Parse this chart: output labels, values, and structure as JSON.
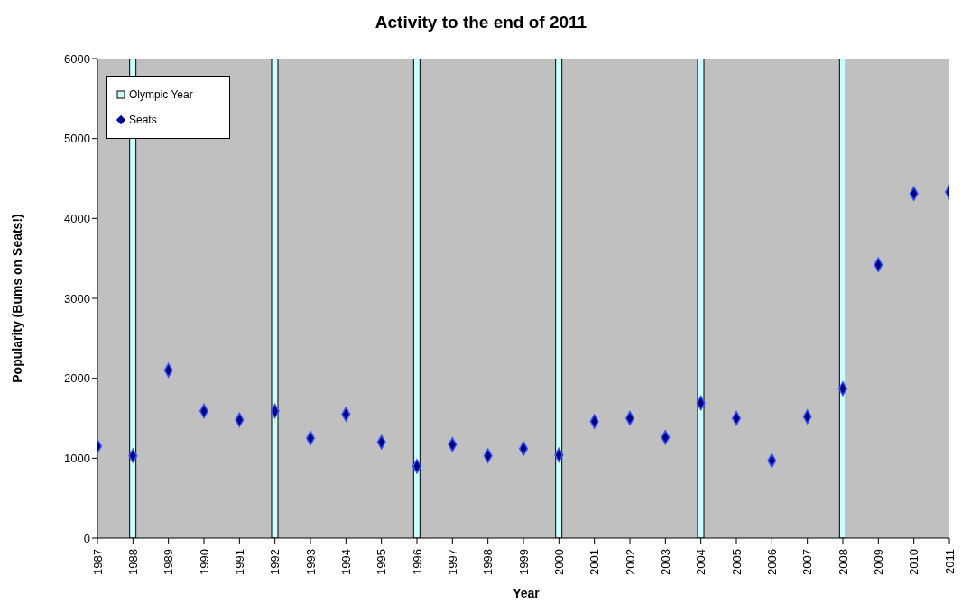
{
  "chart_data": {
    "type": "scatter",
    "title": "Activity to the end of 2011",
    "xlabel": "Year",
    "ylabel": "Popularity (Bums on Seats!)",
    "categories": [
      "1987",
      "1988",
      "1989",
      "1990",
      "1991",
      "1992",
      "1993",
      "1994",
      "1995",
      "1996",
      "1997",
      "1998",
      "1999",
      "2000",
      "2001",
      "2002",
      "2003",
      "2004",
      "2005",
      "2006",
      "2007",
      "2008",
      "2009",
      "2010",
      "2011"
    ],
    "series": [
      {
        "name": "Olympic Year",
        "type": "bar",
        "color": "#ccffff",
        "values": [
          null,
          6000,
          null,
          null,
          null,
          6000,
          null,
          null,
          null,
          6000,
          null,
          null,
          null,
          6000,
          null,
          null,
          null,
          6000,
          null,
          null,
          null,
          6000,
          null,
          null,
          null
        ]
      },
      {
        "name": "Seats",
        "color": "#000080",
        "values": [
          1150,
          1030,
          2100,
          1590,
          1480,
          1590,
          1250,
          1550,
          1200,
          900,
          1170,
          1030,
          1120,
          1040,
          1460,
          1500,
          1260,
          1690,
          1500,
          970,
          1520,
          1870,
          3420,
          4310,
          4330
        ]
      }
    ],
    "ylim": [
      0,
      6000
    ],
    "yticks": [
      0,
      1000,
      2000,
      3000,
      4000,
      5000,
      6000
    ],
    "grid": false,
    "legend": "top left",
    "marker": "diamond"
  }
}
